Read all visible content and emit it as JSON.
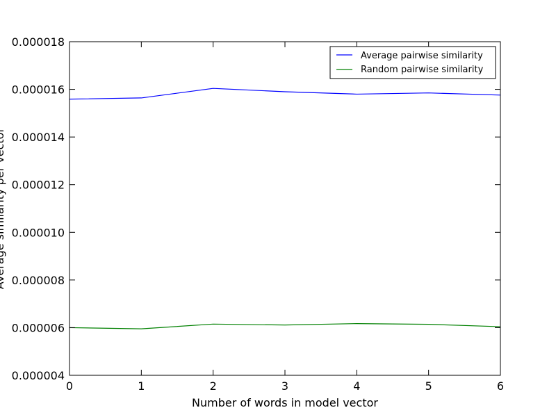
{
  "chart_data": {
    "type": "line",
    "title": "",
    "xlabel": "Number of words in model vector",
    "ylabel": "Average similarity per vector",
    "xlim": [
      0,
      6
    ],
    "ylim": [
      4e-06,
      1.8e-05
    ],
    "x_ticks": [
      0,
      1,
      2,
      3,
      4,
      5,
      6
    ],
    "x_tick_labels": [
      "0",
      "1",
      "2",
      "3",
      "4",
      "5",
      "6"
    ],
    "y_ticks": [
      4e-06,
      6e-06,
      8e-06,
      1e-05,
      1.2e-05,
      1.4e-05,
      1.6e-05,
      1.8e-05
    ],
    "y_tick_labels": [
      "0.000004",
      "0.000006",
      "0.000008",
      "0.000010",
      "0.000012",
      "0.000014",
      "0.000016",
      "0.000018"
    ],
    "grid": false,
    "legend_position": "top-right",
    "x": [
      0,
      1,
      2,
      3,
      4,
      5,
      6
    ],
    "series": [
      {
        "name": "Average pairwise similarity",
        "color": "#0000ff",
        "values": [
          1.559e-05,
          1.564e-05,
          1.604e-05,
          1.59e-05,
          1.58e-05,
          1.585e-05,
          1.576e-05
        ]
      },
      {
        "name": "Random pairwise similarity",
        "color": "#008000",
        "values": [
          6e-06,
          5.95e-06,
          6.15e-06,
          6.11e-06,
          6.17e-06,
          6.14e-06,
          6.04e-06
        ]
      }
    ]
  }
}
